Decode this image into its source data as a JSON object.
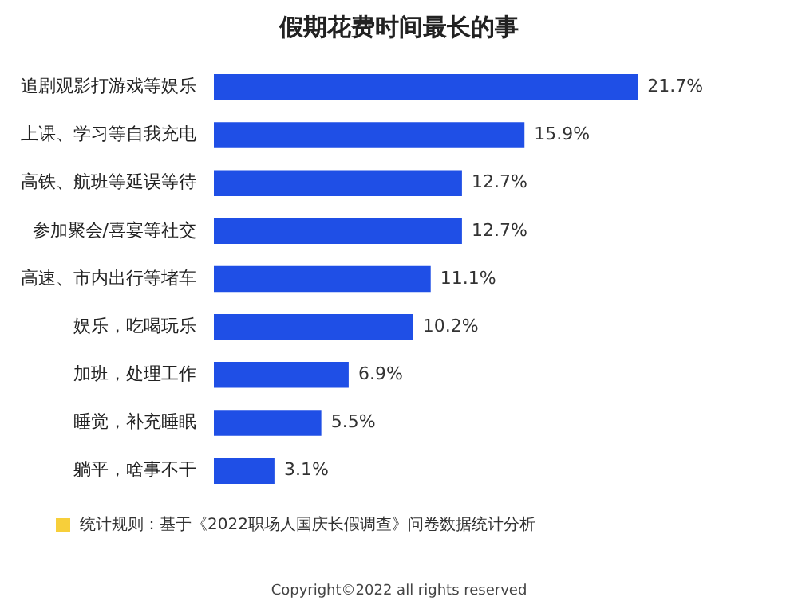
{
  "chart_data": {
    "type": "bar",
    "orientation": "horizontal",
    "title": "假期花费时间最长的事",
    "categories": [
      "追剧观影打游戏等娱乐",
      "上课、学习等自我充电",
      "高铁、航班等延误等待",
      "参加聚会/喜宴等社交",
      "高速、市内出行等堵车",
      "娱乐，吃喝玩乐",
      "加班，处理工作",
      "睡觉，补充睡眠",
      "躺平，啥事不干"
    ],
    "values": [
      21.7,
      15.9,
      12.7,
      12.7,
      11.1,
      10.2,
      6.9,
      5.5,
      3.1
    ],
    "value_labels": [
      "21.7%",
      "15.9%",
      "12.7%",
      "12.7%",
      "11.1%",
      "10.2%",
      "6.9%",
      "5.5%",
      "3.1%"
    ],
    "color": "#1f4fe6",
    "tick_labels": "y",
    "grid": false,
    "legend": false,
    "annotations": [
      "统计规则：基于《2022职场人国庆长假调查》问卷数据统计分析",
      "Copyright©2022 all rights reserved"
    ]
  }
}
